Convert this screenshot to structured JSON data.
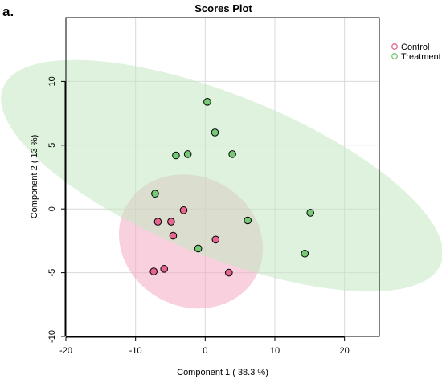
{
  "chart_data": {
    "type": "scatter",
    "panel_label": "a.",
    "title": "Scores Plot",
    "xlabel": "Component 1 ( 38.3 %)",
    "ylabel": "Component 2 ( 13 %)",
    "xlim": [
      -20,
      25
    ],
    "ylim": [
      -10,
      15
    ],
    "x_ticks": [
      -20,
      -10,
      0,
      10,
      20
    ],
    "y_ticks": [
      -10,
      -5,
      0,
      5,
      10
    ],
    "grid": true,
    "legend_position": "top-right",
    "series": [
      {
        "name": "Control",
        "color": "#e6668f",
        "ellipse_color": "#f4a9c2",
        "points": [
          {
            "x": -7.4,
            "y": -4.9
          },
          {
            "x": -5.9,
            "y": -4.7
          },
          {
            "x": -6.8,
            "y": -1.0
          },
          {
            "x": -4.9,
            "y": -1.0
          },
          {
            "x": -4.6,
            "y": -2.1
          },
          {
            "x": -3.1,
            "y": -0.1
          },
          {
            "x": 1.5,
            "y": -2.4
          },
          {
            "x": 3.4,
            "y": -5.0
          }
        ],
        "ellipse": {
          "cx": -2.05,
          "cy": -2.55,
          "rx": 10.6,
          "ry": 5.1,
          "rotation_deg": 28
        }
      },
      {
        "name": "Treatment",
        "color": "#77c978",
        "ellipse_color": "#c2e8c3",
        "points": [
          {
            "x": -7.2,
            "y": 1.2
          },
          {
            "x": -4.2,
            "y": 4.2
          },
          {
            "x": -2.5,
            "y": 4.3
          },
          {
            "x": 0.3,
            "y": 8.4
          },
          {
            "x": 1.4,
            "y": 6.0
          },
          {
            "x": 3.9,
            "y": 4.3
          },
          {
            "x": 6.1,
            "y": -0.9
          },
          {
            "x": 15.1,
            "y": -0.3
          },
          {
            "x": 14.3,
            "y": -3.5
          },
          {
            "x": -1.0,
            "y": -3.1
          }
        ],
        "ellipse": {
          "cx": 2.4,
          "cy": 2.6,
          "rx": 11.6,
          "ry": 18.5,
          "rotation_deg": -68
        }
      }
    ]
  }
}
